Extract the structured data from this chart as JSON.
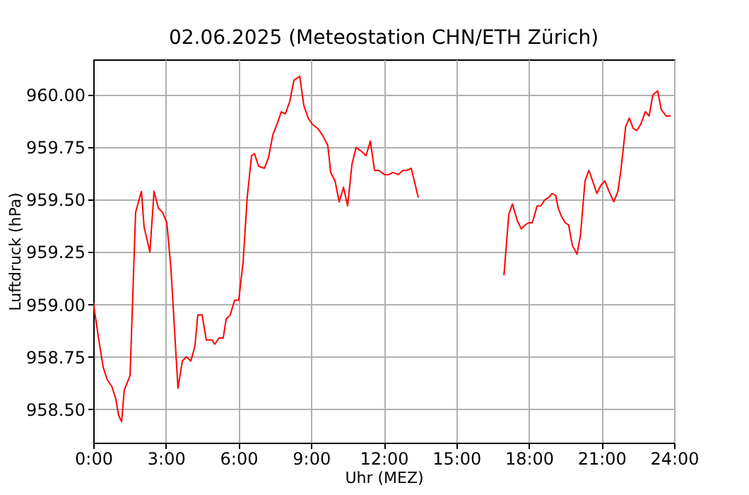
{
  "chart_data": {
    "type": "line",
    "title": "02.06.2025  (Meteostation CHN/ETH Zürich)",
    "xlabel": "Uhr (MEZ)",
    "ylabel": "Luftdruck (hPa)",
    "x": [
      0,
      0.23,
      0.41,
      0.58,
      0.76,
      0.93,
      1.05,
      1.17,
      1.28,
      1.52,
      1.75,
      1.99,
      2.1,
      2.34,
      2.51,
      2.69,
      2.86,
      3.04,
      3.21,
      3.5,
      3.68,
      3.85,
      4.03,
      4.2,
      4.32,
      4.5,
      4.67,
      4.91,
      5.02,
      5.2,
      5.37,
      5.49,
      5.66,
      5.84,
      6.01,
      6.19,
      6.36,
      6.54,
      6.66,
      6.83,
      7.07,
      7.24,
      7.42,
      7.59,
      7.77,
      7.94,
      8.12,
      8.29,
      8.53,
      8.7,
      8.88,
      9.05,
      9.28,
      9.46,
      9.69,
      9.81,
      9.99,
      10.16,
      10.34,
      10.51,
      10.69,
      10.86,
      11.09,
      11.27,
      11.45,
      11.62,
      11.8,
      12.03,
      12.21,
      12.38,
      12.61,
      12.79,
      12.96,
      13.14,
      13.43,
      15,
      16.97,
      17.17,
      17.32,
      17.52,
      17.69,
      17.85,
      17.99,
      18.14,
      18.34,
      18.49,
      18.66,
      18.82,
      18.96,
      19.11,
      19.21,
      19.35,
      19.5,
      19.64,
      19.8,
      19.99,
      20.13,
      20.32,
      20.48,
      20.63,
      20.81,
      20.98,
      21.14,
      21.31,
      21.51,
      21.68,
      21.8,
      22,
      22.15,
      22.31,
      22.46,
      22.62,
      22.81,
      22.97,
      23.12,
      23.32,
      23.47,
      23.67,
      23.86
    ],
    "series": [
      {
        "color": "#ff0000",
        "values": [
          959.01,
          958.83,
          958.7,
          958.64,
          958.61,
          958.55,
          958.47,
          958.44,
          958.59,
          958.66,
          959.44,
          959.54,
          959.37,
          959.25,
          959.54,
          959.46,
          959.44,
          959.39,
          959.17,
          958.6,
          958.73,
          958.75,
          958.73,
          958.8,
          958.95,
          958.95,
          958.83,
          958.83,
          958.81,
          958.84,
          958.84,
          958.93,
          958.95,
          959.02,
          959.02,
          959.2,
          959.51,
          959.71,
          959.72,
          959.66,
          959.65,
          959.7,
          959.81,
          959.86,
          959.92,
          959.91,
          959.97,
          960.07,
          960.09,
          959.95,
          959.89,
          959.86,
          959.84,
          959.81,
          959.76,
          959.63,
          959.59,
          959.49,
          959.56,
          959.47,
          959.67,
          959.75,
          959.73,
          959.71,
          959.78,
          959.64,
          959.64,
          959.62,
          959.62,
          959.63,
          959.62,
          959.64,
          959.64,
          959.65,
          959.51,
          null,
          959.14,
          959.43,
          959.48,
          959.4,
          959.36,
          959.38,
          959.39,
          959.39,
          959.47,
          959.47,
          959.5,
          959.51,
          959.53,
          959.52,
          959.46,
          959.42,
          959.39,
          959.38,
          959.28,
          959.24,
          959.33,
          959.59,
          959.64,
          959.59,
          959.53,
          959.57,
          959.59,
          959.54,
          959.49,
          959.54,
          959.64,
          959.85,
          959.89,
          959.84,
          959.83,
          959.86,
          959.92,
          959.9,
          960,
          960.02,
          959.93,
          959.9,
          959.9
        ]
      }
    ],
    "xlim": [
      0,
      24
    ],
    "xticks": [
      {
        "value": 0,
        "label": "0:00"
      },
      {
        "value": 3,
        "label": "3:00"
      },
      {
        "value": 6,
        "label": "6:00"
      },
      {
        "value": 9,
        "label": "9:00"
      },
      {
        "value": 12,
        "label": "12:00"
      },
      {
        "value": 15,
        "label": "15:00"
      },
      {
        "value": 18,
        "label": "18:00"
      },
      {
        "value": 21,
        "label": "21:00"
      },
      {
        "value": 24,
        "label": "24:00"
      }
    ],
    "ylim": [
      958.34,
      960.17
    ],
    "yticks": [
      {
        "value": 958.5,
        "label": "958.50"
      },
      {
        "value": 958.75,
        "label": "958.75"
      },
      {
        "value": 959,
        "label": "959.00"
      },
      {
        "value": 959.25,
        "label": "959.25"
      },
      {
        "value": 959.5,
        "label": "959.50"
      },
      {
        "value": 959.75,
        "label": "959.75"
      },
      {
        "value": 960,
        "label": "960.00"
      }
    ],
    "grid": true,
    "marker": "none",
    "line_style": "solid"
  }
}
